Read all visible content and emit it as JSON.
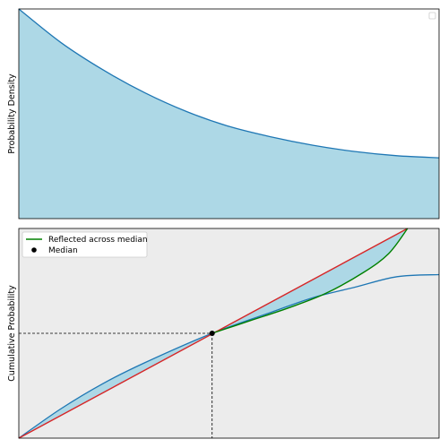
{
  "chart_data": [
    {
      "type": "area",
      "title": "",
      "xlabel": "",
      "ylabel": "Probability Density",
      "xlim": [
        0,
        1
      ],
      "ylim": [
        0,
        1
      ],
      "grid": false,
      "legend": {
        "placement": "top-right",
        "entries": []
      },
      "fill_color": "#add8e6",
      "line_color": "#1f77b4",
      "series": [
        {
          "x": [
            0,
            0.1,
            0.2,
            0.3,
            0.4,
            0.5,
            0.6,
            0.7,
            0.8,
            0.9,
            1.0
          ],
          "values": [
            1.0,
            0.84,
            0.71,
            0.6,
            0.51,
            0.44,
            0.39,
            0.35,
            0.32,
            0.3,
            0.29
          ]
        }
      ]
    },
    {
      "type": "line",
      "title": "",
      "xlabel": "",
      "ylabel": "Cumulative Probability",
      "xlim": [
        0,
        1
      ],
      "ylim": [
        0,
        1
      ],
      "grid": false,
      "background": "#ececec",
      "between_fill_color": "#add8e6",
      "legend": {
        "placement": "top-left",
        "entries": [
          {
            "label": "Reflected across median",
            "kind": "line",
            "color": "#008000"
          },
          {
            "label": "Median",
            "kind": "marker",
            "color": "#000000"
          }
        ]
      },
      "median": {
        "x": 0.46,
        "y": 0.5
      },
      "series": [
        {
          "role": "cdf",
          "color": "#1f77b4",
          "x": [
            0,
            0.1,
            0.2,
            0.3,
            0.46,
            0.6,
            0.7,
            0.8,
            0.9,
            1.0
          ],
          "values": [
            0,
            0.14,
            0.26,
            0.36,
            0.5,
            0.6,
            0.67,
            0.72,
            0.77,
            0.78
          ]
        },
        {
          "role": "reference",
          "color": "#d62728",
          "x": [
            0,
            0.46,
            0.925
          ],
          "values": [
            0,
            0.5,
            1.0
          ]
        },
        {
          "role": "reflected",
          "name": "Reflected across median",
          "color": "#008000",
          "x": [
            0.46,
            0.55,
            0.64,
            0.73,
            0.82,
            0.88,
            0.925
          ],
          "values": [
            0.5,
            0.56,
            0.62,
            0.69,
            0.79,
            0.88,
            1.0
          ]
        }
      ]
    }
  ]
}
